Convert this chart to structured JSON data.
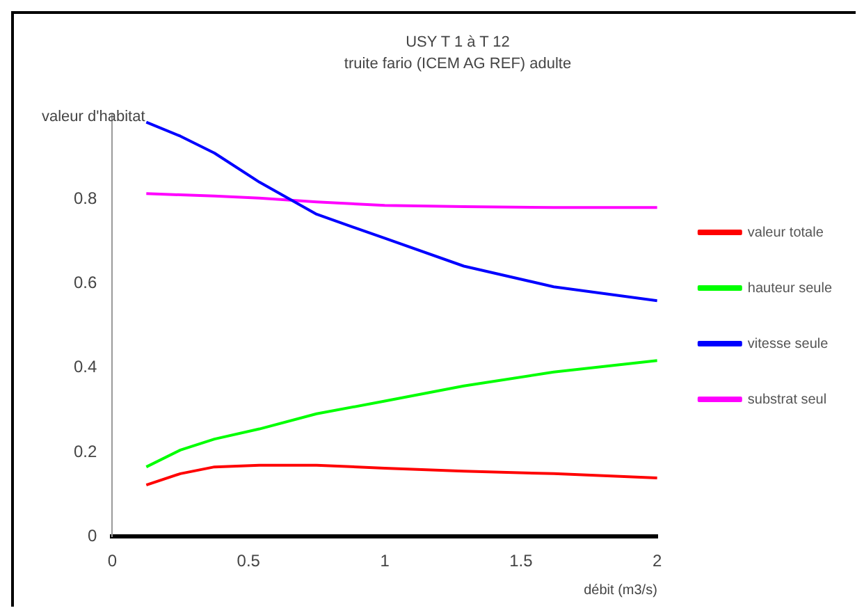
{
  "chart_data": {
    "type": "line",
    "title": "USY T 1 à T 12",
    "subtitle": "truite fario (ICEM AG REF) adulte",
    "ylabel": "valeur d'habitat",
    "xlabel": "débit (m3/s)",
    "x": [
      0.125,
      0.25,
      0.375,
      0.54,
      0.75,
      1.0,
      1.29,
      1.62,
      2.0
    ],
    "series": [
      {
        "name": "valeur totale",
        "color": "#ff0000",
        "values": [
          0.122,
          0.149,
          0.165,
          0.169,
          0.169,
          0.162,
          0.155,
          0.149,
          0.139
        ]
      },
      {
        "name": "hauteur seule",
        "color": "#00ff00",
        "values": [
          0.165,
          0.205,
          0.231,
          0.255,
          0.291,
          0.321,
          0.357,
          0.39,
          0.417
        ]
      },
      {
        "name": "vitesse seule",
        "color": "#0000ff",
        "values": [
          0.982,
          0.949,
          0.909,
          0.84,
          0.764,
          0.707,
          0.641,
          0.592,
          0.559
        ]
      },
      {
        "name": "substrat seul",
        "color": "#ff00ff",
        "values": [
          0.813,
          0.81,
          0.807,
          0.802,
          0.793,
          0.785,
          0.782,
          0.78,
          0.78
        ]
      }
    ],
    "xlim": [
      0,
      2
    ],
    "xticks": [
      0,
      0.5,
      1,
      1.5,
      2
    ],
    "ylim": [
      0,
      1
    ],
    "yticks": [
      0,
      0.2,
      0.4,
      0.6,
      0.8
    ],
    "grid": false,
    "legend": "right",
    "marker": "none",
    "line_style": "solid"
  }
}
